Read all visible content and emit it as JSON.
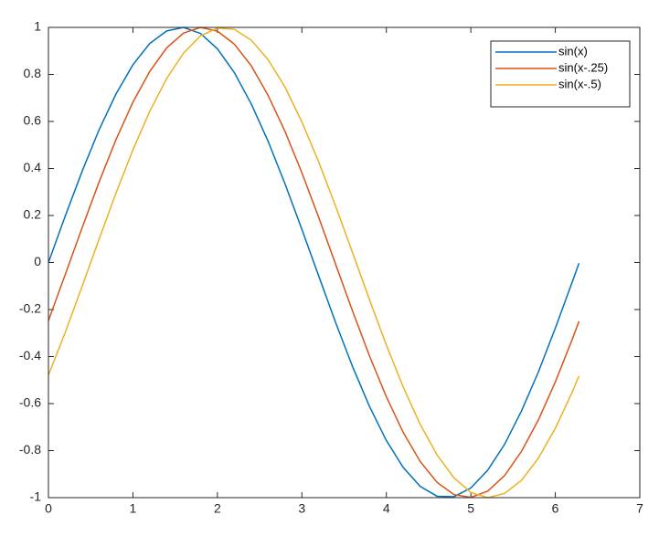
{
  "chart_data": {
    "type": "line",
    "x": [
      0,
      0.2,
      0.4,
      0.6,
      0.8,
      1.0,
      1.2,
      1.4,
      1.6,
      1.8,
      2.0,
      2.2,
      2.4,
      2.6,
      2.8,
      3.0,
      3.2,
      3.4,
      3.6,
      3.8,
      4.0,
      4.2,
      4.4,
      4.6,
      4.8,
      5.0,
      5.2,
      5.4,
      5.6,
      5.8,
      6.0,
      6.2,
      6.28
    ],
    "series": [
      {
        "name": "sin(x)",
        "color": "#0072bd",
        "values": [
          0,
          0.199,
          0.389,
          0.565,
          0.717,
          0.841,
          0.932,
          0.985,
          1.0,
          0.974,
          0.909,
          0.808,
          0.675,
          0.516,
          0.335,
          0.141,
          -0.058,
          -0.256,
          -0.443,
          -0.612,
          -0.757,
          -0.872,
          -0.952,
          -0.994,
          -0.996,
          -0.959,
          -0.883,
          -0.773,
          -0.631,
          -0.465,
          -0.279,
          -0.083,
          -0.003
        ]
      },
      {
        "name": "sin(x-.25)",
        "color": "#d95319",
        "values": [
          -0.247,
          -0.05,
          0.149,
          0.343,
          0.523,
          0.682,
          0.813,
          0.913,
          0.976,
          1.0,
          0.984,
          0.929,
          0.837,
          0.711,
          0.558,
          0.382,
          0.191,
          -0.008,
          -0.207,
          -0.397,
          -0.571,
          -0.723,
          -0.846,
          -0.935,
          -0.987,
          -0.999,
          -0.972,
          -0.906,
          -0.803,
          -0.669,
          -0.508,
          -0.327,
          -0.25
        ]
      },
      {
        "name": "sin(x-.5)",
        "color": "#edb120",
        "values": [
          -0.479,
          -0.296,
          -0.1,
          0.1,
          0.296,
          0.479,
          0.644,
          0.783,
          0.891,
          0.964,
          0.997,
          0.992,
          0.946,
          0.863,
          0.746,
          0.598,
          0.427,
          0.239,
          0.042,
          -0.158,
          -0.351,
          -0.53,
          -0.688,
          -0.818,
          -0.916,
          -0.978,
          -1.0,
          -0.982,
          -0.926,
          -0.832,
          -0.705,
          -0.551,
          -0.482
        ]
      }
    ],
    "xlim": [
      0,
      7
    ],
    "xticks": [
      0,
      1,
      2,
      3,
      4,
      5,
      6,
      7
    ],
    "ylim": [
      -1,
      1
    ],
    "yticks": [
      -1,
      -0.8,
      -0.6,
      -0.4,
      -0.2,
      0,
      0.2,
      0.4,
      0.6,
      0.8,
      1
    ],
    "legend": "upper-right"
  }
}
